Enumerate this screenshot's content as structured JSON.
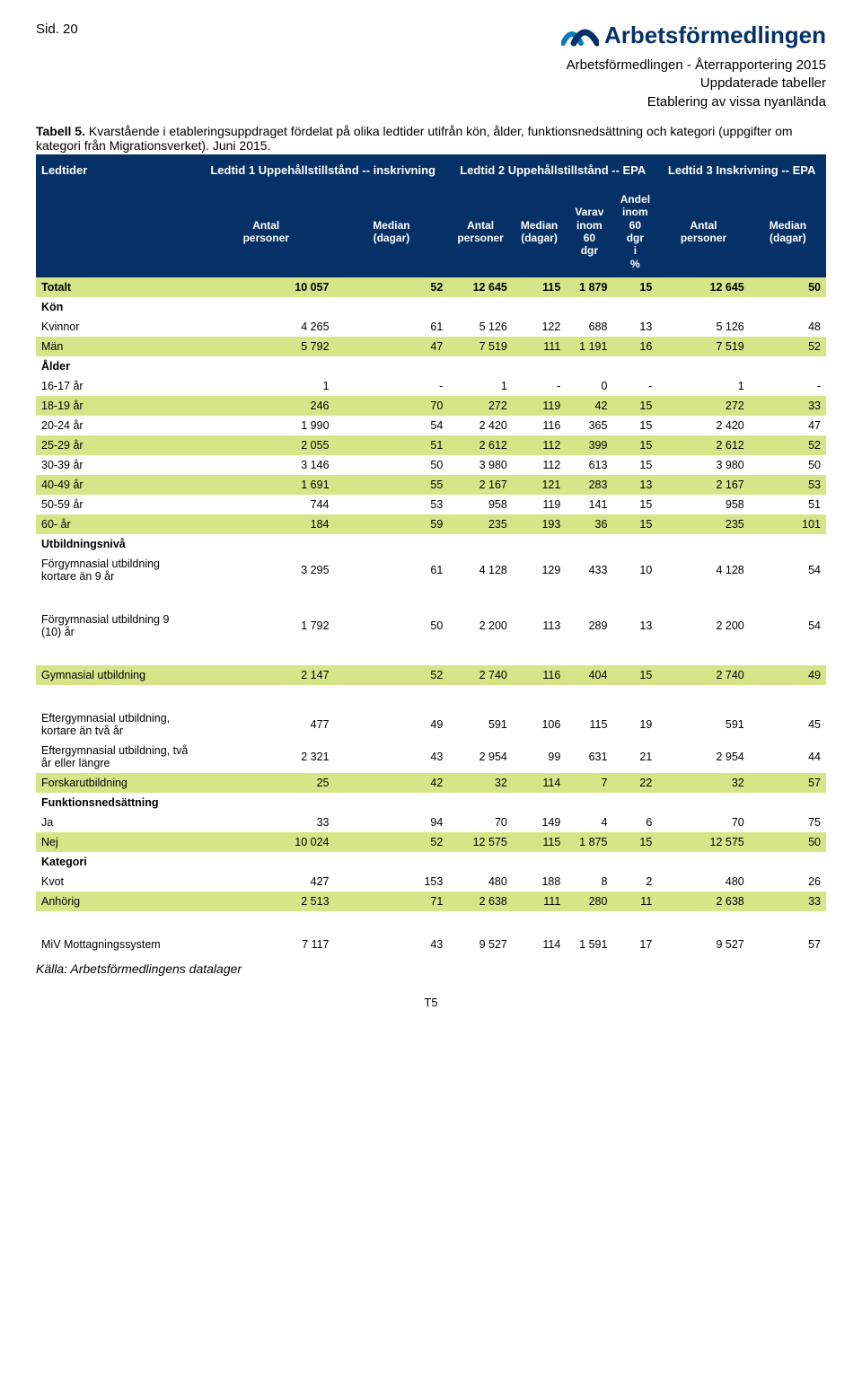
{
  "page_number": "Sid. 20",
  "logo_text": "Arbetsförmedlingen",
  "logo_colors": {
    "dark_blue": "#063167",
    "light_blue": "#0a7bb8"
  },
  "report_lines": [
    "Arbetsförmedlingen - Återrapportering 2015",
    "Uppdaterade tabeller",
    "Etablering av vissa nyanlända"
  ],
  "table_label": "Tabell 5.",
  "caption": "Kvarstående i etableringsuppdraget fördelat på olika ledtider utifrån kön, ålder, funktionsnedsättning och kategori (uppgifter om kategori från Migrationsverket). Juni 2015.",
  "band": {
    "c0": "Ledtider",
    "c1": "Ledtid 1 Uppehållstillstånd -- inskrivning",
    "c2": "Ledtid 2 Uppehållstillstånd -- EPA",
    "c3": "Ledtid 3 Inskrivning -- EPA"
  },
  "subheaders": {
    "antal": "Antal personer",
    "median": "Median (dagar)",
    "varav": "Varav inom 60 dgr",
    "andel": "Andel inom 60 dgr i %"
  },
  "colors": {
    "header_bg": "#063167",
    "header_fg": "#ffffff",
    "highlight_bg": "#d7e589",
    "text": "#000000",
    "bg": "#ffffff"
  },
  "rows": [
    {
      "type": "total",
      "label": "Totalt",
      "v": [
        "10 057",
        "52",
        "12 645",
        "115",
        "1 879",
        "15",
        "12 645",
        "50"
      ]
    },
    {
      "type": "section",
      "label": "Kön"
    },
    {
      "type": "data",
      "label": "Kvinnor",
      "v": [
        "4 265",
        "61",
        "5 126",
        "122",
        "688",
        "13",
        "5 126",
        "48"
      ]
    },
    {
      "type": "hl",
      "label": "Män",
      "v": [
        "5 792",
        "47",
        "7 519",
        "111",
        "1 191",
        "16",
        "7 519",
        "52"
      ]
    },
    {
      "type": "section",
      "label": "Ålder"
    },
    {
      "type": "data",
      "label": "16-17 år",
      "v": [
        "1",
        "-",
        "1",
        "-",
        "0",
        "-",
        "1",
        "-"
      ]
    },
    {
      "type": "hl",
      "label": "18-19 år",
      "v": [
        "246",
        "70",
        "272",
        "119",
        "42",
        "15",
        "272",
        "33"
      ]
    },
    {
      "type": "data",
      "label": "20-24 år",
      "v": [
        "1 990",
        "54",
        "2 420",
        "116",
        "365",
        "15",
        "2 420",
        "47"
      ]
    },
    {
      "type": "hl",
      "label": "25-29 år",
      "v": [
        "2 055",
        "51",
        "2 612",
        "112",
        "399",
        "15",
        "2 612",
        "52"
      ]
    },
    {
      "type": "data",
      "label": "30-39 år",
      "v": [
        "3 146",
        "50",
        "3 980",
        "112",
        "613",
        "15",
        "3 980",
        "50"
      ]
    },
    {
      "type": "hl",
      "label": "40-49 år",
      "v": [
        "1 691",
        "55",
        "2 167",
        "121",
        "283",
        "13",
        "2 167",
        "53"
      ]
    },
    {
      "type": "data",
      "label": "50-59 år",
      "v": [
        "744",
        "53",
        "958",
        "119",
        "141",
        "15",
        "958",
        "51"
      ]
    },
    {
      "type": "hl",
      "label": "60- år",
      "v": [
        "184",
        "59",
        "235",
        "193",
        "36",
        "15",
        "235",
        "101"
      ]
    },
    {
      "type": "section",
      "label": "Utbildningsnivå"
    },
    {
      "type": "data",
      "label": "Förgymnasial utbildning kortare än 9 år",
      "v": [
        "3 295",
        "61",
        "4 128",
        "129",
        "433",
        "10",
        "4 128",
        "54"
      ]
    },
    {
      "type": "spacer"
    },
    {
      "type": "data",
      "label": "Förgymnasial utbildning 9 (10) år",
      "v": [
        "1 792",
        "50",
        "2 200",
        "113",
        "289",
        "13",
        "2 200",
        "54"
      ]
    },
    {
      "type": "spacer"
    },
    {
      "type": "hl",
      "label": "Gymnasial utbildning",
      "v": [
        "2 147",
        "52",
        "2 740",
        "116",
        "404",
        "15",
        "2 740",
        "49"
      ]
    },
    {
      "type": "spacer"
    },
    {
      "type": "data",
      "label": "Eftergymnasial utbildning, kortare än två år",
      "v": [
        "477",
        "49",
        "591",
        "106",
        "115",
        "19",
        "591",
        "45"
      ]
    },
    {
      "type": "data",
      "label": "Eftergymnasial utbildning, två år eller längre",
      "v": [
        "2 321",
        "43",
        "2 954",
        "99",
        "631",
        "21",
        "2 954",
        "44"
      ]
    },
    {
      "type": "hl",
      "label": "Forskarutbildning",
      "v": [
        "25",
        "42",
        "32",
        "114",
        "7",
        "22",
        "32",
        "57"
      ]
    },
    {
      "type": "section",
      "label": "Funktionsnedsättning"
    },
    {
      "type": "data",
      "label": "Ja",
      "v": [
        "33",
        "94",
        "70",
        "149",
        "4",
        "6",
        "70",
        "75"
      ]
    },
    {
      "type": "hl",
      "label": "Nej",
      "v": [
        "10 024",
        "52",
        "12 575",
        "115",
        "1 875",
        "15",
        "12 575",
        "50"
      ]
    },
    {
      "type": "section",
      "label": "Kategori"
    },
    {
      "type": "data",
      "label": "Kvot",
      "v": [
        "427",
        "153",
        "480",
        "188",
        "8",
        "2",
        "480",
        "26"
      ]
    },
    {
      "type": "hl",
      "label": "Anhörig",
      "v": [
        "2 513",
        "71",
        "2 638",
        "111",
        "280",
        "11",
        "2 638",
        "33"
      ]
    },
    {
      "type": "spacer"
    },
    {
      "type": "data",
      "label": "MiV Mottagningssystem",
      "v": [
        "7 117",
        "43",
        "9 527",
        "114",
        "1 591",
        "17",
        "9 527",
        "57"
      ]
    }
  ],
  "source": "Källa: Arbetsförmedlingens datalager",
  "footer": "T5"
}
